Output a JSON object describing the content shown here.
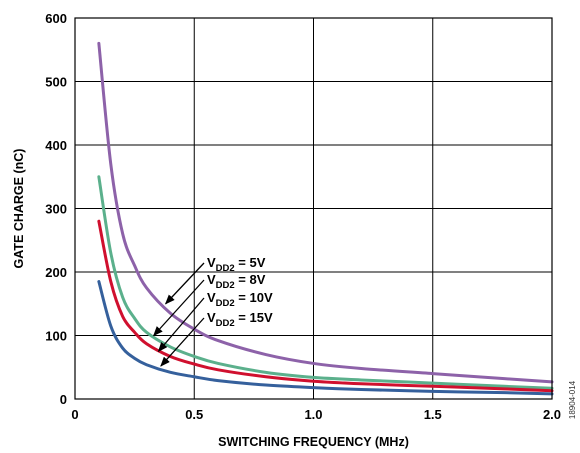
{
  "chart_data": {
    "type": "line",
    "title": "",
    "xlabel": "SWITCHING FREQUENCY (MHz)",
    "ylabel": "GATE CHARGE (nC)",
    "xlim": [
      0,
      2.0
    ],
    "ylim": [
      0,
      600
    ],
    "xticks": [
      0,
      0.5,
      1.0,
      1.5,
      2.0
    ],
    "xtick_labels": [
      "0",
      "0.5",
      "1.0",
      "1.5",
      "2.0"
    ],
    "yticks": [
      0,
      100,
      200,
      300,
      400,
      500,
      600
    ],
    "ytick_labels": [
      "0",
      "100",
      "200",
      "300",
      "400",
      "500",
      "600"
    ],
    "grid": true,
    "series": [
      {
        "name": "V_DD2 = 5V",
        "color": "#8d62a9",
        "x": [
          0.1,
          0.15,
          0.2,
          0.25,
          0.3,
          0.4,
          0.5,
          0.6,
          0.8,
          1.0,
          1.2,
          1.5,
          1.8,
          2.0
        ],
        "y": [
          560,
          370,
          260,
          210,
          175,
          135,
          110,
          92,
          70,
          56,
          48,
          40,
          32,
          27
        ]
      },
      {
        "name": "V_DD2 = 8V",
        "color": "#5bb08c",
        "x": [
          0.1,
          0.15,
          0.2,
          0.25,
          0.3,
          0.4,
          0.5,
          0.6,
          0.8,
          1.0,
          1.2,
          1.5,
          1.8,
          2.0
        ],
        "y": [
          350,
          230,
          160,
          127,
          105,
          82,
          67,
          56,
          42,
          34,
          30,
          25,
          20,
          17
        ]
      },
      {
        "name": "V_DD2 = 10V",
        "color": "#d0102e",
        "x": [
          0.1,
          0.15,
          0.2,
          0.25,
          0.3,
          0.4,
          0.5,
          0.6,
          0.8,
          1.0,
          1.2,
          1.5,
          1.8,
          2.0
        ],
        "y": [
          280,
          185,
          130,
          105,
          87,
          67,
          55,
          46,
          35,
          28,
          24,
          20,
          16,
          13
        ]
      },
      {
        "name": "V_DD2 = 15V",
        "color": "#35609c",
        "x": [
          0.1,
          0.15,
          0.2,
          0.25,
          0.3,
          0.4,
          0.5,
          0.6,
          0.8,
          1.0,
          1.2,
          1.5,
          1.8,
          2.0
        ],
        "y": [
          185,
          115,
          80,
          64,
          54,
          42,
          35,
          29,
          22,
          18,
          15,
          12,
          10,
          8
        ]
      }
    ],
    "annotations": [
      {
        "main": "V",
        "sub": "DD2",
        "rest": " = 5V",
        "series_index": 0,
        "arrow_x": 0.38,
        "arrow_y": 150
      },
      {
        "main": "V",
        "sub": "DD2",
        "rest": " = 8V",
        "series_index": 1,
        "arrow_x": 0.33,
        "arrow_y": 100
      },
      {
        "main": "V",
        "sub": "DD2",
        "rest": " = 10V",
        "series_index": 2,
        "arrow_x": 0.35,
        "arrow_y": 75
      },
      {
        "main": "V",
        "sub": "DD2",
        "rest": " = 15V",
        "series_index": 3,
        "arrow_x": 0.36,
        "arrow_y": 52
      }
    ],
    "figure_id": "18904-014"
  }
}
